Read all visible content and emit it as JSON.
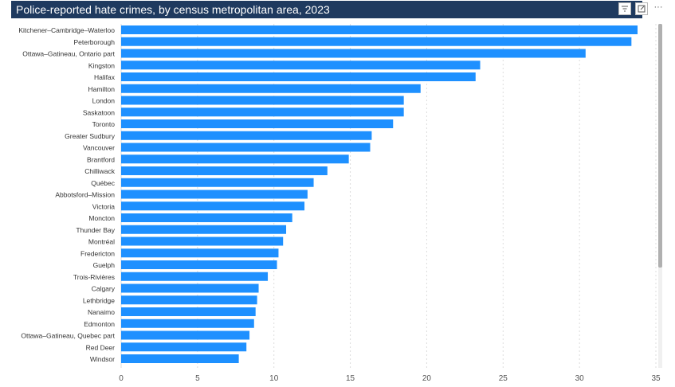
{
  "header": {
    "title": "Police-reported hate crimes, by census metropolitan area, 2023"
  },
  "toolbar": {
    "filter_icon": "filter-icon",
    "focus_icon": "focus-mode-icon",
    "more_label": "···"
  },
  "colors": {
    "bar": "#1e90ff",
    "title_bg": "#1f3a5f",
    "grid": "#dcdcdc"
  },
  "chart_data": {
    "type": "bar",
    "orientation": "horizontal",
    "title": "Police-reported hate crimes, by census metropolitan area, 2023",
    "xlabel": "",
    "ylabel": "",
    "xlim": [
      0,
      35
    ],
    "xticks": [
      0,
      5,
      10,
      15,
      20,
      25,
      30,
      35
    ],
    "grid": true,
    "categories": [
      "Kitchener–Cambridge–Waterloo",
      "Peterborough",
      "Ottawa–Gatineau, Ontario part",
      "Kingston",
      "Halifax",
      "Hamilton",
      "London",
      "Saskatoon",
      "Toronto",
      "Greater Sudbury",
      "Vancouver",
      "Brantford",
      "Chilliwack",
      "Québec",
      "Abbotsford–Mission",
      "Victoria",
      "Moncton",
      "Thunder Bay",
      "Montréal",
      "Fredericton",
      "Guelph",
      "Trois-Rivières",
      "Calgary",
      "Lethbridge",
      "Nanaimo",
      "Edmonton",
      "Ottawa–Gatineau, Quebec part",
      "Red Deer",
      "Windsor"
    ],
    "values": [
      33.8,
      33.4,
      30.4,
      23.5,
      23.2,
      19.6,
      18.5,
      18.5,
      17.8,
      16.4,
      16.3,
      14.9,
      13.5,
      12.6,
      12.2,
      12.0,
      11.2,
      10.8,
      10.6,
      10.3,
      10.2,
      9.6,
      9.0,
      8.9,
      8.8,
      8.7,
      8.4,
      8.2,
      7.7
    ]
  }
}
